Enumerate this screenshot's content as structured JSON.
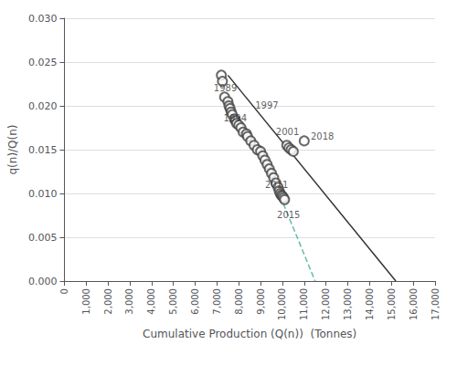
{
  "chart_data": {
    "type": "scatter",
    "xlabel": "Cumulative Production (Q(n))  (Tonnes)",
    "ylabel": "q(n)/Q(n)",
    "xlim": [
      0,
      17000
    ],
    "ylim": [
      0.0,
      0.03
    ],
    "xticks": [
      0,
      {
        "value": 1000,
        "label": "1,000"
      },
      {
        "value": 2000,
        "label": "2,000"
      },
      {
        "value": 3000,
        "label": "3,000"
      },
      {
        "value": 4000,
        "label": "4,000"
      },
      {
        "value": 5000,
        "label": "5,000"
      },
      {
        "value": 6000,
        "label": "6,000"
      },
      {
        "value": 7000,
        "label": "7,000"
      },
      {
        "value": 8000,
        "label": "8,000"
      },
      {
        "value": 9000,
        "label": "9,000"
      },
      {
        "value": 10000,
        "label": "10,000"
      },
      {
        "value": 11000,
        "label": "11,000"
      },
      {
        "value": 12000,
        "label": "12,000"
      },
      {
        "value": 13000,
        "label": "13,000"
      },
      {
        "value": 14000,
        "label": "14,000"
      },
      {
        "value": 15000,
        "label": "15,000"
      },
      {
        "value": 16000,
        "label": "16,000"
      },
      {
        "value": 17000,
        "label": "17,000"
      }
    ],
    "yticks": [
      {
        "value": 0.0,
        "label": "0.000"
      },
      0.005,
      {
        "value": 0.01,
        "label": "0.010"
      },
      0.015,
      {
        "value": 0.02,
        "label": "0.020"
      },
      0.025,
      {
        "value": 0.03,
        "label": "0.030"
      }
    ],
    "grid": "y",
    "series": [
      {
        "type": "scatter",
        "color": "#444444",
        "marker": "emptyCircle",
        "x": [
          7200,
          7250,
          7350,
          7500,
          7550,
          7600,
          7650,
          7700,
          7800,
          7850,
          7900,
          8000,
          8100,
          8200,
          8350,
          8400,
          8550,
          8700,
          8850,
          9000,
          9100,
          9200,
          9300,
          9400,
          9500,
          9600,
          9700,
          9800,
          9850,
          9900,
          9950,
          10000,
          10050,
          10100,
          10200,
          10300,
          10400,
          10500,
          11000
        ],
        "values": [
          0.0235,
          0.0228,
          0.021,
          0.0205,
          0.02,
          0.0197,
          0.0193,
          0.019,
          0.0185,
          0.0183,
          0.018,
          0.0178,
          0.0175,
          0.017,
          0.0168,
          0.0165,
          0.016,
          0.0155,
          0.015,
          0.0148,
          0.0143,
          0.0138,
          0.0133,
          0.0128,
          0.0123,
          0.0118,
          0.0112,
          0.0107,
          0.0103,
          0.01,
          0.0098,
          0.0097,
          0.0095,
          0.0093,
          0.0155,
          0.0152,
          0.015,
          0.0148,
          0.016
        ]
      },
      {
        "type": "line",
        "color": "#333333",
        "line_style": "solid",
        "x": [
          7500,
          15200
        ],
        "values": [
          0.0235,
          0.0
        ]
      },
      {
        "type": "line",
        "color": "#66bbaa",
        "line_style": "dashed",
        "x": [
          9900,
          11500
        ],
        "values": [
          0.0097,
          0.0
        ]
      }
    ],
    "annotations": [
      {
        "label": "1989",
        "x": 6850,
        "y": 0.0215
      },
      {
        "label": "1994",
        "x": 7300,
        "y": 0.0181
      },
      {
        "label": "1997",
        "x": 8750,
        "y": 0.0195
      },
      {
        "label": "2001",
        "x": 9700,
        "y": 0.0165
      },
      {
        "label": "2011",
        "x": 9200,
        "y": 0.0105
      },
      {
        "label": "2015",
        "x": 9750,
        "y": 0.007
      },
      {
        "label": "2018",
        "x": 11300,
        "y": 0.016
      }
    ]
  }
}
